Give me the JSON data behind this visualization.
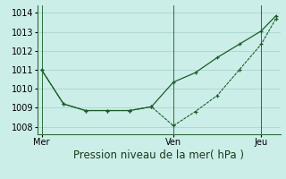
{
  "title": "Pression niveau de la mer( hPa )",
  "bg_color": "#cceee8",
  "grid_color": "#aad4ce",
  "line_color": "#1a5c28",
  "ylim": [
    1007.6,
    1014.4
  ],
  "yticks": [
    1008,
    1009,
    1010,
    1011,
    1012,
    1013,
    1014
  ],
  "xtick_labels": [
    "Mer",
    "Ven",
    "Jeu"
  ],
  "xtick_positions": [
    0,
    9,
    15
  ],
  "vline_positions": [
    0,
    9,
    15
  ],
  "series1_x": [
    0,
    1.5,
    3,
    4.5,
    6,
    7.5,
    9,
    10.5,
    12,
    13.5,
    15,
    16
  ],
  "series1_y": [
    1011.0,
    1009.2,
    1008.85,
    1008.85,
    1008.85,
    1009.05,
    1010.35,
    1010.85,
    1011.65,
    1012.35,
    1013.05,
    1013.85
  ],
  "series2_x": [
    0,
    1.5,
    3,
    4.5,
    6,
    7.5,
    9,
    10.5,
    12,
    13.5,
    15,
    16
  ],
  "series2_y": [
    1011.0,
    1009.2,
    1008.85,
    1008.85,
    1008.85,
    1009.05,
    1008.05,
    1008.8,
    1009.65,
    1011.0,
    1012.35,
    1013.7
  ],
  "xlabel_fontsize": 8.5,
  "tick_fontsize": 7,
  "border_color": "#2d6e3e"
}
